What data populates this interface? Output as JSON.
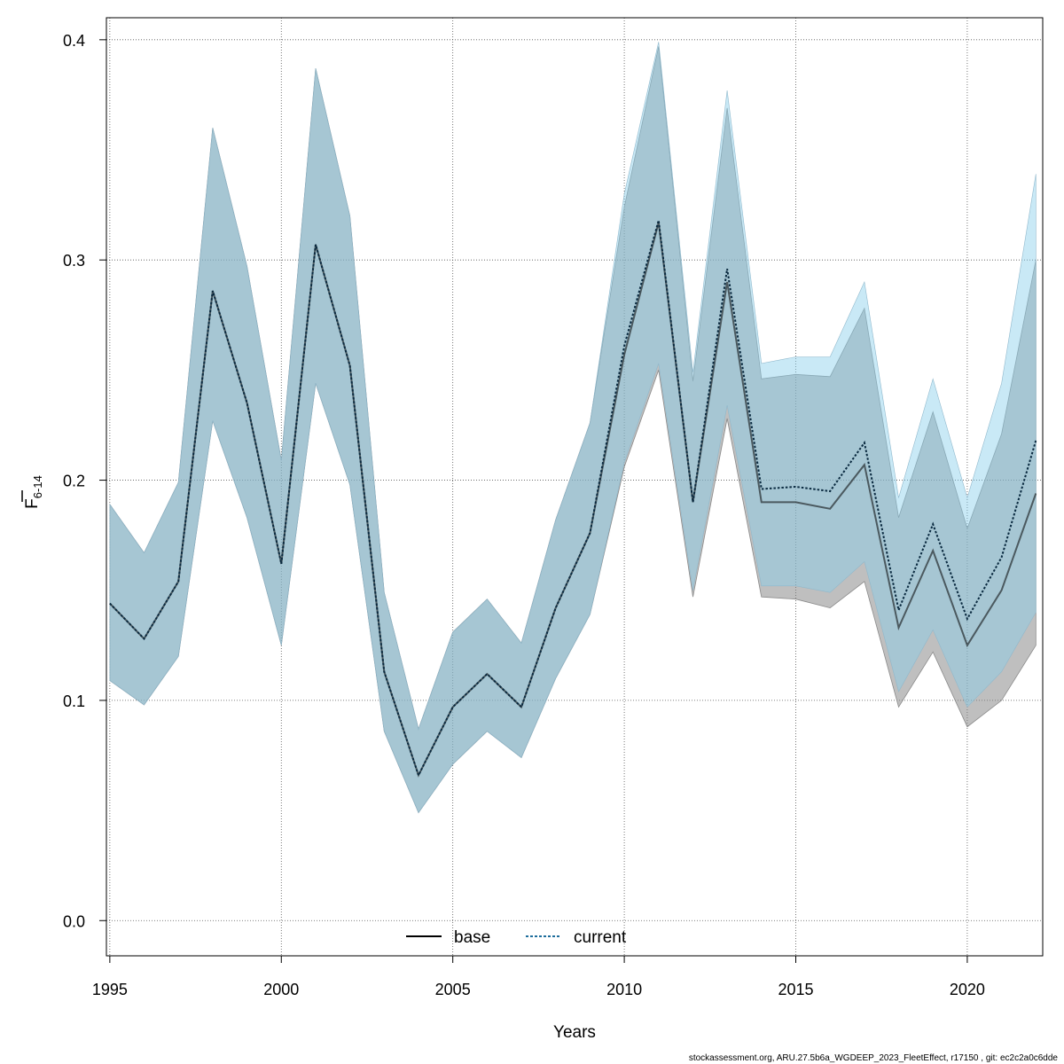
{
  "chart_data": {
    "type": "area",
    "xlabel": "Years",
    "ylabel_main": "F",
    "ylabel_sub": "6-14",
    "xlim": [
      1994.9,
      2022.2
    ],
    "ylim": [
      -0.016,
      0.41
    ],
    "x_ticks": [
      1995,
      2000,
      2005,
      2010,
      2015,
      2020
    ],
    "y_ticks": [
      0.0,
      0.1,
      0.2,
      0.3,
      0.4
    ],
    "y_tick_labels": [
      "0.0",
      "0.1",
      "0.2",
      "0.3",
      "0.4"
    ],
    "grid": true,
    "legend_position": "bottom",
    "x": [
      1995,
      1996,
      1997,
      1998,
      1999,
      2000,
      2001,
      2002,
      2003,
      2004,
      2005,
      2006,
      2007,
      2008,
      2009,
      2010,
      2011,
      2012,
      2013,
      2014,
      2015,
      2016,
      2017,
      2018,
      2019,
      2020,
      2021,
      2022
    ],
    "series": [
      {
        "name": "base",
        "line_style": "solid",
        "line_color": "#000000",
        "band_color": "#808080",
        "values": [
          0.144,
          0.128,
          0.154,
          0.286,
          0.235,
          0.162,
          0.307,
          0.252,
          0.113,
          0.066,
          0.097,
          0.112,
          0.097,
          0.142,
          0.176,
          0.257,
          0.317,
          0.19,
          0.29,
          0.19,
          0.19,
          0.187,
          0.207,
          0.133,
          0.168,
          0.125,
          0.15,
          0.194
        ],
        "lower": [
          0.109,
          0.098,
          0.12,
          0.227,
          0.183,
          0.125,
          0.244,
          0.198,
          0.086,
          0.049,
          0.071,
          0.086,
          0.074,
          0.11,
          0.139,
          0.206,
          0.25,
          0.147,
          0.228,
          0.147,
          0.146,
          0.142,
          0.154,
          0.097,
          0.122,
          0.088,
          0.1,
          0.125
        ],
        "upper": [
          0.189,
          0.167,
          0.199,
          0.36,
          0.297,
          0.209,
          0.387,
          0.32,
          0.149,
          0.087,
          0.131,
          0.146,
          0.126,
          0.182,
          0.226,
          0.324,
          0.397,
          0.245,
          0.369,
          0.246,
          0.248,
          0.247,
          0.278,
          0.183,
          0.231,
          0.178,
          0.221,
          0.3
        ]
      },
      {
        "name": "current",
        "line_style": "dotted",
        "line_color": "#1f6e9c",
        "band_color": "#87ceeb",
        "values": [
          0.144,
          0.128,
          0.154,
          0.286,
          0.235,
          0.162,
          0.307,
          0.252,
          0.113,
          0.066,
          0.097,
          0.112,
          0.097,
          0.142,
          0.176,
          0.261,
          0.318,
          0.19,
          0.296,
          0.196,
          0.197,
          0.195,
          0.217,
          0.141,
          0.18,
          0.137,
          0.165,
          0.218
        ],
        "lower": [
          0.109,
          0.098,
          0.12,
          0.227,
          0.183,
          0.125,
          0.244,
          0.198,
          0.086,
          0.049,
          0.071,
          0.086,
          0.074,
          0.11,
          0.139,
          0.208,
          0.253,
          0.15,
          0.234,
          0.152,
          0.152,
          0.149,
          0.163,
          0.104,
          0.132,
          0.097,
          0.113,
          0.14
        ],
        "upper": [
          0.189,
          0.167,
          0.199,
          0.36,
          0.297,
          0.209,
          0.387,
          0.32,
          0.149,
          0.087,
          0.131,
          0.146,
          0.126,
          0.182,
          0.226,
          0.33,
          0.399,
          0.249,
          0.377,
          0.253,
          0.256,
          0.256,
          0.29,
          0.192,
          0.246,
          0.192,
          0.244,
          0.339
        ]
      }
    ]
  },
  "legend": {
    "base_label": "base",
    "current_label": "current"
  },
  "footer": "stockassessment.org, ARU.27.5b6a_WGDEEP_2023_FleetEffect, r17150 , git: ec2c2a0c6dde"
}
